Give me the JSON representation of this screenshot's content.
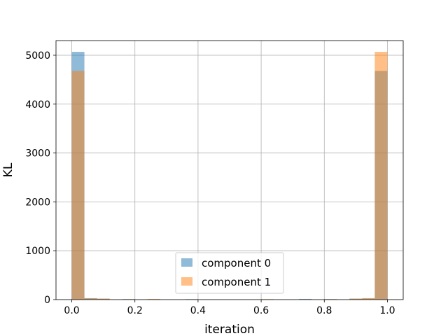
{
  "chart_data": {
    "type": "bar",
    "subtype": "histogram-overlay",
    "xlabel": "iteration",
    "ylabel": "KL",
    "xlim": [
      -0.05,
      1.05
    ],
    "ylim": [
      0,
      5300
    ],
    "xticks": [
      0.0,
      0.2,
      0.4,
      0.6,
      0.8,
      1.0
    ],
    "xtick_labels": [
      "0.0",
      "0.2",
      "0.4",
      "0.6",
      "0.8",
      "1.0"
    ],
    "yticks": [
      0,
      1000,
      2000,
      3000,
      4000,
      5000
    ],
    "ytick_labels": [
      "0",
      "1000",
      "2000",
      "3000",
      "4000",
      "5000"
    ],
    "grid": true,
    "legend_position": "bottom-center",
    "bin_edges": [
      0.0,
      0.04,
      0.08,
      0.12,
      0.16,
      0.2,
      0.24,
      0.28,
      0.32,
      0.36,
      0.4,
      0.44,
      0.48,
      0.52,
      0.56,
      0.6,
      0.64,
      0.68,
      0.72,
      0.76,
      0.8,
      0.84,
      0.88,
      0.92,
      0.96,
      1.0
    ],
    "series": [
      {
        "name": "component 0",
        "color": "#1f77b4",
        "alpha": 0.5,
        "values": [
          5070,
          30,
          20,
          0,
          10,
          0,
          5,
          0,
          0,
          10,
          0,
          0,
          0,
          0,
          0,
          5,
          0,
          0,
          15,
          0,
          10,
          0,
          20,
          25,
          4680
        ]
      },
      {
        "name": "component 1",
        "color": "#ff7f0e",
        "alpha": 0.5,
        "values": [
          4680,
          25,
          20,
          0,
          10,
          0,
          15,
          0,
          0,
          0,
          0,
          0,
          0,
          0,
          0,
          10,
          0,
          0,
          5,
          0,
          10,
          0,
          20,
          30,
          5070
        ]
      }
    ]
  }
}
